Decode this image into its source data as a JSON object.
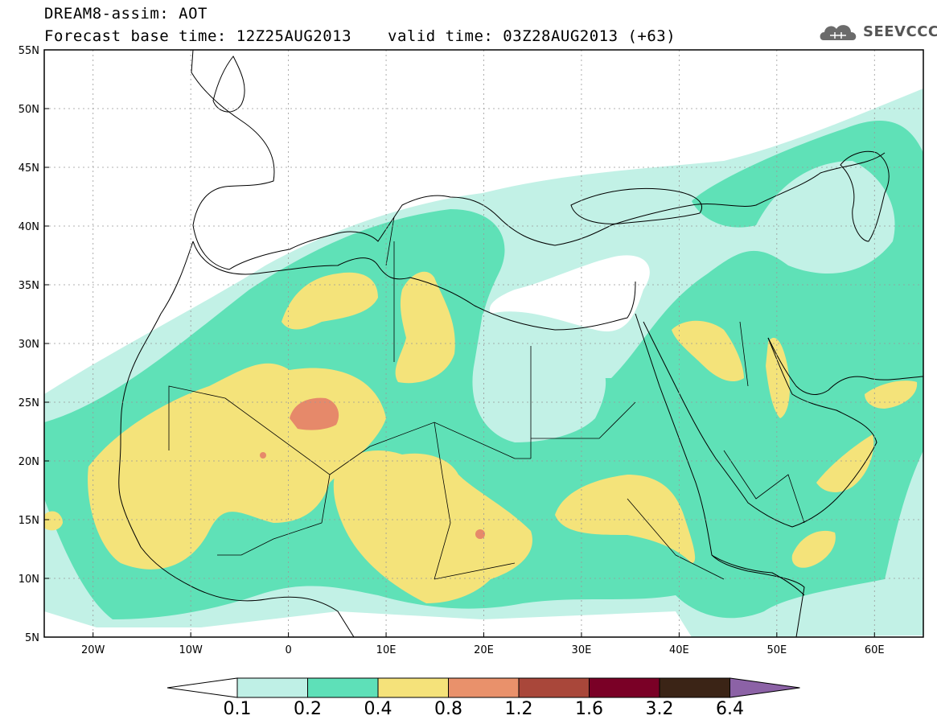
{
  "title": {
    "line1": "DREAM8-assim: AOT",
    "line2": "Forecast base time: 12Z25AUG2013",
    "valid": "valid time: 03Z28AUG2013 (+63)"
  },
  "logo": {
    "text": "SEEVCCC",
    "icon": "cloud-icon"
  },
  "map": {
    "lat_range": [
      5,
      55
    ],
    "lon_range": [
      -25,
      65
    ],
    "lat_ticks": [
      "55N",
      "50N",
      "45N",
      "40N",
      "35N",
      "30N",
      "25N",
      "20N",
      "15N",
      "10N",
      "5N"
    ],
    "lon_ticks": [
      "20W",
      "10W",
      "0",
      "10E",
      "20E",
      "30E",
      "40E",
      "50E",
      "60E"
    ],
    "gridlines": "dotted"
  },
  "colorbar": {
    "labels": [
      "0.1",
      "0.2",
      "0.4",
      "0.8",
      "1.2",
      "1.6",
      "3.2",
      "6.4"
    ],
    "colors": [
      "#ffffff",
      "#bff0e6",
      "#5ee0b8",
      "#f5e27a",
      "#e9916b",
      "#a9473a",
      "#7a0026",
      "#3b2416",
      "#8c62a6"
    ]
  },
  "field_colors": {
    "very_light": "#c2f1e6",
    "light": "#5fe1b7",
    "moderate": "#f4e37a",
    "high": "#e6896a"
  }
}
